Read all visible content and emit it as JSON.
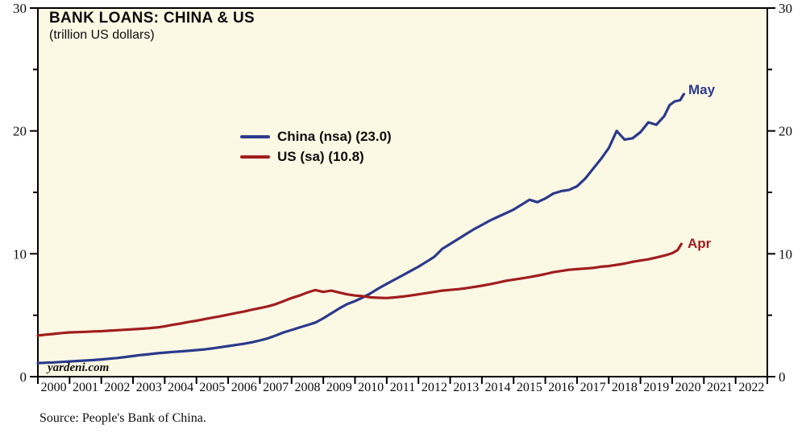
{
  "title": "BANK LOANS: CHINA & US",
  "subtitle": "(trillion US dollars)",
  "watermark": "yardeni.com",
  "source": "Source: People's Bank of China.",
  "colors": {
    "china_line": "#2B3A8C",
    "us_line": "#A01E1E",
    "plot_background": "#FBF8E4",
    "axis": "#000000",
    "text": "#0D0D0D",
    "page_background": "#FFFFFF"
  },
  "chart_data": {
    "type": "line",
    "title": "BANK LOANS: CHINA & US",
    "subtitle": "(trillion US dollars)",
    "ylabel": "trillion US dollars",
    "xlim": [
      2000,
      2023
    ],
    "ylim": [
      0,
      30
    ],
    "grid": false,
    "legend_position": "upper-center-left",
    "y_major_ticks": [
      0,
      10,
      20,
      30
    ],
    "y_minor_ticks": [
      5,
      15,
      25
    ],
    "y_axis_sides": [
      "left",
      "right"
    ],
    "x_boundary_ticks": [
      2000,
      2001,
      2002,
      2003,
      2004,
      2005,
      2006,
      2007,
      2008,
      2009,
      2010,
      2011,
      2012,
      2013,
      2014,
      2015,
      2016,
      2017,
      2018,
      2019,
      2020,
      2021,
      2022,
      2023
    ],
    "x_year_labels": [
      "2000",
      "2001",
      "2002",
      "2003",
      "2004",
      "2005",
      "2006",
      "2007",
      "2008",
      "2009",
      "2010",
      "2011",
      "2012",
      "2013",
      "2014",
      "2015",
      "2016",
      "2017",
      "2018",
      "2019",
      "2020",
      "2021",
      "2022"
    ],
    "series": [
      {
        "name": "China (nsa) (23.0)",
        "color": "#2B3A8C",
        "end_label": "May",
        "last_value": 23.0,
        "x": [
          2000.0,
          2000.25,
          2000.5,
          2000.75,
          2001.0,
          2001.25,
          2001.5,
          2001.75,
          2002.0,
          2002.25,
          2002.5,
          2002.75,
          2003.0,
          2003.25,
          2003.5,
          2003.75,
          2004.0,
          2004.25,
          2004.5,
          2004.75,
          2005.0,
          2005.25,
          2005.5,
          2005.75,
          2006.0,
          2006.25,
          2006.5,
          2006.75,
          2007.0,
          2007.25,
          2007.5,
          2007.75,
          2008.0,
          2008.25,
          2008.5,
          2008.75,
          2009.0,
          2009.25,
          2009.5,
          2009.75,
          2010.0,
          2010.25,
          2010.5,
          2010.75,
          2011.0,
          2011.25,
          2011.5,
          2011.75,
          2012.0,
          2012.25,
          2012.5,
          2012.75,
          2013.0,
          2013.25,
          2013.5,
          2013.75,
          2014.0,
          2014.25,
          2014.5,
          2014.75,
          2015.0,
          2015.25,
          2015.5,
          2015.75,
          2016.0,
          2016.25,
          2016.5,
          2016.75,
          2017.0,
          2017.25,
          2017.5,
          2017.75,
          2018.0,
          2018.25,
          2018.5,
          2018.75,
          2019.0,
          2019.25,
          2019.5,
          2019.75,
          2019.92,
          2020.08,
          2020.25,
          2020.37
        ],
        "y": [
          1.1,
          1.13,
          1.16,
          1.2,
          1.24,
          1.28,
          1.31,
          1.35,
          1.4,
          1.46,
          1.52,
          1.6,
          1.68,
          1.76,
          1.83,
          1.9,
          1.96,
          2.01,
          2.06,
          2.1,
          2.16,
          2.22,
          2.3,
          2.4,
          2.49,
          2.58,
          2.68,
          2.8,
          2.95,
          3.12,
          3.35,
          3.6,
          3.8,
          4.0,
          4.2,
          4.4,
          4.75,
          5.15,
          5.55,
          5.9,
          6.15,
          6.45,
          6.8,
          7.2,
          7.55,
          7.9,
          8.25,
          8.6,
          8.95,
          9.35,
          9.75,
          10.4,
          10.8,
          11.2,
          11.6,
          12.0,
          12.35,
          12.7,
          13.0,
          13.3,
          13.6,
          14.0,
          14.4,
          14.2,
          14.5,
          14.9,
          15.1,
          15.2,
          15.5,
          16.1,
          16.9,
          17.7,
          18.6,
          20.0,
          19.3,
          19.4,
          19.9,
          20.7,
          20.5,
          21.2,
          22.1,
          22.4,
          22.5,
          23.0
        ]
      },
      {
        "name": "US (sa) (10.8)",
        "color": "#A01E1E",
        "end_label": "Apr",
        "last_value": 10.8,
        "x": [
          2000.0,
          2000.25,
          2000.5,
          2000.75,
          2001.0,
          2001.25,
          2001.5,
          2001.75,
          2002.0,
          2002.25,
          2002.5,
          2002.75,
          2003.0,
          2003.25,
          2003.5,
          2003.75,
          2004.0,
          2004.25,
          2004.5,
          2004.75,
          2005.0,
          2005.25,
          2005.5,
          2005.75,
          2006.0,
          2006.25,
          2006.5,
          2006.75,
          2007.0,
          2007.25,
          2007.5,
          2007.75,
          2008.0,
          2008.25,
          2008.5,
          2008.75,
          2009.0,
          2009.25,
          2009.5,
          2009.75,
          2010.0,
          2010.25,
          2010.5,
          2010.75,
          2011.0,
          2011.25,
          2011.5,
          2011.75,
          2012.0,
          2012.25,
          2012.5,
          2012.75,
          2013.0,
          2013.25,
          2013.5,
          2013.75,
          2014.0,
          2014.25,
          2014.5,
          2014.75,
          2015.0,
          2015.25,
          2015.5,
          2015.75,
          2016.0,
          2016.25,
          2016.5,
          2016.75,
          2017.0,
          2017.25,
          2017.5,
          2017.75,
          2018.0,
          2018.25,
          2018.5,
          2018.75,
          2019.0,
          2019.25,
          2019.5,
          2019.75,
          2020.0,
          2020.17,
          2020.29
        ],
        "y": [
          3.35,
          3.42,
          3.48,
          3.55,
          3.6,
          3.62,
          3.65,
          3.68,
          3.7,
          3.74,
          3.78,
          3.82,
          3.86,
          3.9,
          3.94,
          4.0,
          4.1,
          4.22,
          4.32,
          4.45,
          4.55,
          4.68,
          4.8,
          4.92,
          5.05,
          5.18,
          5.3,
          5.45,
          5.58,
          5.72,
          5.9,
          6.15,
          6.4,
          6.6,
          6.85,
          7.05,
          6.9,
          7.0,
          6.85,
          6.7,
          6.6,
          6.55,
          6.45,
          6.42,
          6.4,
          6.45,
          6.52,
          6.6,
          6.7,
          6.8,
          6.9,
          7.0,
          7.06,
          7.12,
          7.2,
          7.3,
          7.4,
          7.52,
          7.65,
          7.8,
          7.9,
          8.0,
          8.1,
          8.22,
          8.35,
          8.5,
          8.6,
          8.7,
          8.75,
          8.8,
          8.85,
          8.95,
          9.0,
          9.1,
          9.2,
          9.35,
          9.45,
          9.55,
          9.7,
          9.85,
          10.05,
          10.3,
          10.8
        ]
      }
    ]
  }
}
